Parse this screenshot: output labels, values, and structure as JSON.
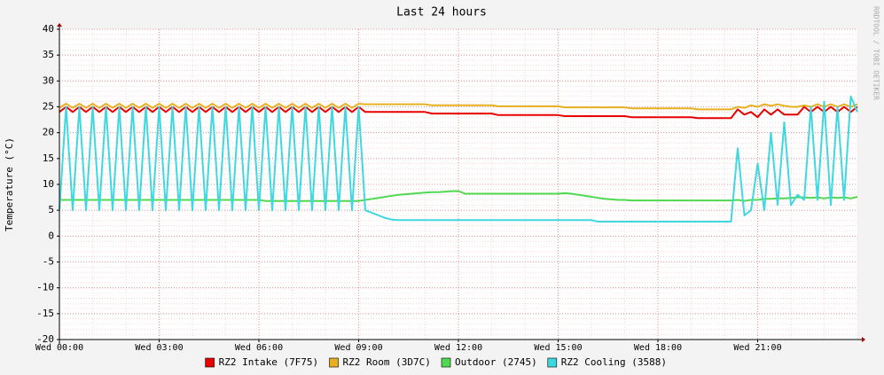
{
  "chart_data": {
    "type": "line",
    "title": "Last 24 hours",
    "y_label": "Temperature (°C)",
    "side_label": "RRDTOOL / TOBI OETIKER",
    "grid": true,
    "legend": "bottom",
    "xlim": [
      0,
      24
    ],
    "xticks": [
      {
        "value": 0,
        "label": "Wed 00:00"
      },
      {
        "value": 3,
        "label": "Wed 03:00"
      },
      {
        "value": 6,
        "label": "Wed 06:00"
      },
      {
        "value": 9,
        "label": "Wed 09:00"
      },
      {
        "value": 12,
        "label": "Wed 12:00"
      },
      {
        "value": 15,
        "label": "Wed 15:00"
      },
      {
        "value": 18,
        "label": "Wed 18:00"
      },
      {
        "value": 21,
        "label": "Wed 21:00"
      }
    ],
    "ylim": [
      -20,
      40
    ],
    "yticks": [
      -20,
      -15,
      -10,
      -5,
      0,
      5,
      10,
      15,
      20,
      25,
      30,
      35,
      40
    ],
    "x": [
      0,
      0.2,
      0.4,
      0.6,
      0.8,
      1,
      1.2,
      1.4,
      1.6,
      1.8,
      2,
      2.2,
      2.4,
      2.6,
      2.8,
      3,
      3.2,
      3.4,
      3.6,
      3.8,
      4,
      4.2,
      4.4,
      4.6,
      4.8,
      5,
      5.2,
      5.4,
      5.6,
      5.8,
      6,
      6.2,
      6.4,
      6.6,
      6.8,
      7,
      7.2,
      7.4,
      7.6,
      7.8,
      8,
      8.2,
      8.4,
      8.6,
      8.8,
      9,
      9.2,
      9.4,
      9.6,
      9.8,
      10,
      10.2,
      10.4,
      10.6,
      10.8,
      11,
      11.2,
      11.4,
      11.6,
      11.8,
      12,
      12.2,
      12.4,
      12.6,
      12.8,
      13,
      13.2,
      13.4,
      13.6,
      13.8,
      14,
      14.2,
      14.4,
      14.6,
      14.8,
      15,
      15.2,
      15.4,
      15.6,
      15.8,
      16,
      16.2,
      16.4,
      16.6,
      16.8,
      17,
      17.2,
      17.4,
      17.6,
      17.8,
      18,
      18.2,
      18.4,
      18.6,
      18.8,
      19,
      19.2,
      19.4,
      19.6,
      19.8,
      20,
      20.2,
      20.4,
      20.6,
      20.8,
      21,
      21.2,
      21.4,
      21.6,
      21.8,
      22,
      22.2,
      22.4,
      22.6,
      22.8,
      23,
      23.2,
      23.4,
      23.6,
      23.8,
      24
    ],
    "series": [
      {
        "name": "RZ2 Intake (7F75)",
        "color": "#e80000",
        "values": [
          24,
          25,
          24,
          25,
          24,
          25,
          24,
          25,
          24,
          25,
          24,
          25,
          24,
          25,
          24,
          25,
          24,
          25,
          24,
          25,
          24,
          25,
          24,
          25,
          24,
          25,
          24,
          25,
          24,
          25,
          24,
          25,
          24,
          25,
          24,
          25,
          24,
          25,
          24,
          25,
          24,
          25,
          24,
          25,
          24,
          25,
          24,
          24,
          24,
          24,
          24,
          24,
          24,
          24,
          24,
          24,
          23.7,
          23.7,
          23.7,
          23.7,
          23.7,
          23.7,
          23.7,
          23.7,
          23.7,
          23.7,
          23.4,
          23.4,
          23.4,
          23.4,
          23.4,
          23.4,
          23.4,
          23.4,
          23.4,
          23.4,
          23.2,
          23.2,
          23.2,
          23.2,
          23.2,
          23.2,
          23.2,
          23.2,
          23.2,
          23.2,
          23,
          23,
          23,
          23,
          23,
          23,
          23,
          23,
          23,
          23,
          22.8,
          22.8,
          22.8,
          22.8,
          22.8,
          22.8,
          24.5,
          23.5,
          24,
          23,
          24.5,
          23.5,
          24.5,
          23.5,
          23.5,
          23.5,
          25,
          24,
          25,
          24,
          25,
          24,
          25,
          24,
          25
        ]
      },
      {
        "name": "RZ2 Room (3D7C)",
        "color": "#e8b020",
        "values": [
          24.8,
          25.6,
          24.8,
          25.6,
          24.8,
          25.6,
          24.8,
          25.6,
          24.8,
          25.6,
          24.8,
          25.6,
          24.8,
          25.6,
          24.8,
          25.6,
          24.8,
          25.6,
          24.8,
          25.6,
          24.8,
          25.6,
          24.8,
          25.6,
          24.8,
          25.6,
          24.8,
          25.6,
          24.8,
          25.6,
          24.8,
          25.6,
          24.8,
          25.6,
          24.8,
          25.6,
          24.8,
          25.6,
          24.8,
          25.6,
          24.8,
          25.6,
          24.8,
          25.6,
          24.8,
          25.6,
          25.5,
          25.5,
          25.5,
          25.5,
          25.5,
          25.5,
          25.5,
          25.5,
          25.5,
          25.5,
          25.3,
          25.3,
          25.3,
          25.3,
          25.3,
          25.3,
          25.3,
          25.3,
          25.3,
          25.3,
          25.1,
          25.1,
          25.1,
          25.1,
          25.1,
          25.1,
          25.1,
          25.1,
          25.1,
          25.1,
          24.9,
          24.9,
          24.9,
          24.9,
          24.9,
          24.9,
          24.9,
          24.9,
          24.9,
          24.9,
          24.7,
          24.7,
          24.7,
          24.7,
          24.7,
          24.7,
          24.7,
          24.7,
          24.7,
          24.7,
          24.5,
          24.5,
          24.5,
          24.5,
          24.5,
          24.5,
          25,
          24.8,
          25.3,
          25,
          25.5,
          25.2,
          25.5,
          25.2,
          25,
          25,
          25.3,
          25,
          25.5,
          25,
          25.5,
          25,
          25.5,
          25,
          25.5
        ]
      },
      {
        "name": "Outdoor (2745)",
        "color": "#50d850",
        "values": [
          7,
          7,
          7,
          7,
          7,
          7,
          7,
          7,
          7,
          7,
          7,
          7,
          7,
          7,
          7,
          7,
          7,
          7,
          7,
          7,
          7,
          7,
          7,
          7,
          7,
          7,
          7,
          7,
          7,
          7,
          7,
          6.8,
          6.8,
          6.8,
          6.8,
          6.8,
          6.8,
          6.8,
          6.8,
          6.8,
          6.8,
          6.8,
          6.8,
          6.8,
          6.8,
          6.8,
          7,
          7.2,
          7.4,
          7.6,
          7.8,
          8,
          8.1,
          8.2,
          8.3,
          8.4,
          8.5,
          8.5,
          8.6,
          8.7,
          8.7,
          8.2,
          8.2,
          8.2,
          8.2,
          8.2,
          8.2,
          8.2,
          8.2,
          8.2,
          8.2,
          8.2,
          8.2,
          8.2,
          8.2,
          8.2,
          8.3,
          8.2,
          8,
          7.8,
          7.6,
          7.4,
          7.2,
          7.1,
          7,
          7,
          6.9,
          6.9,
          6.9,
          6.9,
          6.9,
          6.9,
          6.9,
          6.9,
          6.9,
          6.9,
          6.9,
          6.9,
          6.9,
          6.9,
          6.9,
          6.9,
          7,
          6.8,
          7,
          7,
          7.2,
          7.2,
          7.3,
          7.3,
          7.4,
          7.5,
          7.5,
          7.4,
          7.5,
          7.3,
          7.5,
          7.4,
          7.5,
          7.3,
          7.6
        ]
      },
      {
        "name": "RZ2 Cooling (3588)",
        "color": "#40d8e0",
        "values": [
          5,
          25,
          5,
          25,
          5,
          25,
          5,
          25,
          5,
          25,
          5,
          25,
          5,
          25,
          5,
          25,
          5,
          25,
          5,
          25,
          5,
          25,
          5,
          25,
          5,
          25,
          5,
          25,
          5,
          25,
          5,
          25,
          5,
          25,
          5,
          25,
          5,
          25,
          5,
          25,
          5,
          25,
          5,
          25,
          5,
          25,
          5,
          4.5,
          4,
          3.5,
          3.2,
          3.1,
          3.1,
          3.1,
          3.1,
          3.1,
          3.1,
          3.1,
          3.1,
          3.1,
          3.1,
          3.1,
          3.1,
          3.1,
          3.1,
          3.1,
          3.1,
          3.1,
          3.1,
          3.1,
          3.1,
          3.1,
          3.1,
          3.1,
          3.1,
          3.1,
          3.1,
          3.1,
          3.1,
          3.1,
          3.1,
          2.8,
          2.8,
          2.8,
          2.8,
          2.8,
          2.8,
          2.8,
          2.8,
          2.8,
          2.8,
          2.8,
          2.8,
          2.8,
          2.8,
          2.8,
          2.8,
          2.8,
          2.8,
          2.8,
          2.8,
          2.8,
          17,
          4,
          5,
          14,
          5,
          20,
          6,
          22,
          6,
          8,
          7,
          25,
          7,
          26,
          6,
          25,
          7,
          27,
          24
        ]
      }
    ]
  }
}
